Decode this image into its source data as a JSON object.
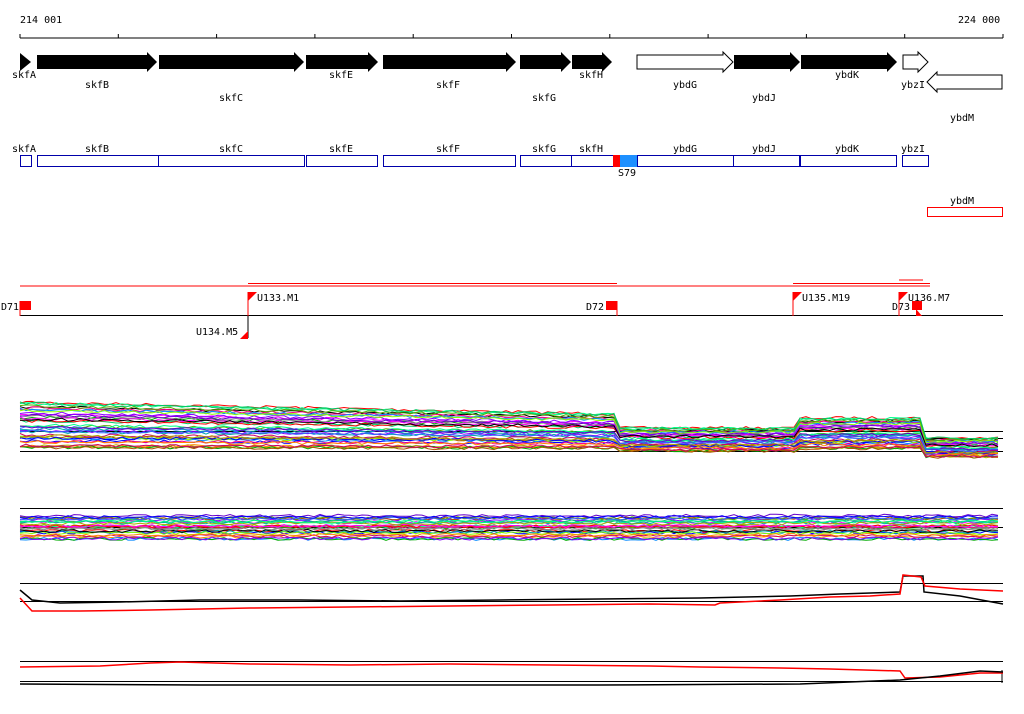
{
  "ruler": {
    "start_label": "214 001",
    "end_label": "224 000"
  },
  "genes": [
    {
      "name": "skfA",
      "fill": "#000000"
    },
    {
      "name": "skfB",
      "fill": "#000000"
    },
    {
      "name": "skfC",
      "fill": "#000000"
    },
    {
      "name": "skfE",
      "fill": "#000000"
    },
    {
      "name": "skfF",
      "fill": "#000000"
    },
    {
      "name": "skfG",
      "fill": "#000000"
    },
    {
      "name": "skfH",
      "fill": "#000000"
    },
    {
      "name": "ybdG",
      "fill": "#ffffff"
    },
    {
      "name": "ybdJ",
      "fill": "#000000"
    },
    {
      "name": "ybdK",
      "fill": "#000000"
    },
    {
      "name": "ybzI",
      "fill": "#ffffff"
    },
    {
      "name": "ybdM",
      "fill": "#ffffff"
    }
  ],
  "segments": [
    "skfA",
    "skfB",
    "skfC",
    "skfE",
    "skfF",
    "skfG",
    "skfH",
    "ybdG",
    "ybdJ",
    "ybdK",
    "ybzI"
  ],
  "segment_ybdM": "ybdM",
  "site_label": "S79",
  "markers": [
    "D71",
    "U133.M1",
    "U134.M5",
    "D72",
    "U135.M19",
    "D73",
    "U136.M7"
  ],
  "colors": {
    "segment_border": "#0000aa",
    "marker": "#ff0000",
    "site_red": "#ff0000",
    "site_blue": "#1e90ff"
  }
}
